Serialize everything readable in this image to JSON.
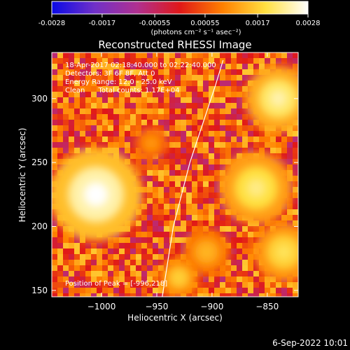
{
  "chart_data": {
    "type": "heatmap",
    "title": "Reconstructed RHESSI Image",
    "xlabel": "Heliocentric X (arcsec)",
    "ylabel": "Heliocentric Y (arcsec)",
    "xlim": [
      -1045,
      -822
    ],
    "ylim": [
      145,
      336
    ],
    "xticks": [
      -1000,
      -950,
      -900,
      -850
    ],
    "xtick_labels": [
      "−1000",
      "−950",
      "−900",
      "−850"
    ],
    "yticks": [
      150,
      200,
      250,
      300
    ],
    "ytick_labels": [
      "150",
      "200",
      "250",
      "300"
    ],
    "colorbar": {
      "range": [
        -0.0028,
        0.0028
      ],
      "ticks": [
        -0.0028,
        -0.0017,
        -0.00055,
        0.00055,
        0.0017,
        0.0028
      ],
      "tick_labels": [
        "-0.0028",
        "-0.0017",
        "-0.00055",
        "0.00055",
        "0.0017",
        "0.0028"
      ],
      "unit_label": "(photons cm⁻² s⁻¹ asec⁻²)",
      "colors": [
        "#0a0ae6",
        "#7030c8",
        "#b03090",
        "#e01818",
        "#ff8000",
        "#ffe040",
        "#ffffff"
      ]
    },
    "annotations": [
      "18-Apr-2017 02:18:40.000 to 02:22:40.000",
      "Detectors: 3F 6F 8F, Att 0",
      "Energy Range: 12.0 - 25.0 keV",
      "Clean      Total counts: 1.17E+04",
      "Position of Peak = [-996,218]"
    ],
    "limb_curve": [
      [
        -945,
        145
      ],
      [
        -935,
        200
      ],
      [
        -920,
        250
      ],
      [
        -897,
        310
      ],
      [
        -890,
        330
      ]
    ],
    "bright_sources": [
      {
        "x": -1005,
        "y": 225,
        "intensity": 0.0028,
        "size": 28
      },
      {
        "x": -860,
        "y": 230,
        "intensity": 0.0022,
        "size": 22
      },
      {
        "x": -840,
        "y": 300,
        "intensity": 0.0024,
        "size": 20
      },
      {
        "x": -835,
        "y": 180,
        "intensity": 0.002,
        "size": 18
      },
      {
        "x": -905,
        "y": 180,
        "intensity": 0.0015,
        "size": 14
      },
      {
        "x": -930,
        "y": 160,
        "intensity": 0.0018,
        "size": 12
      },
      {
        "x": -955,
        "y": 265,
        "intensity": 0.0012,
        "size": 10
      }
    ]
  },
  "footer": {
    "date": "6-Sep-2022 10:01"
  }
}
